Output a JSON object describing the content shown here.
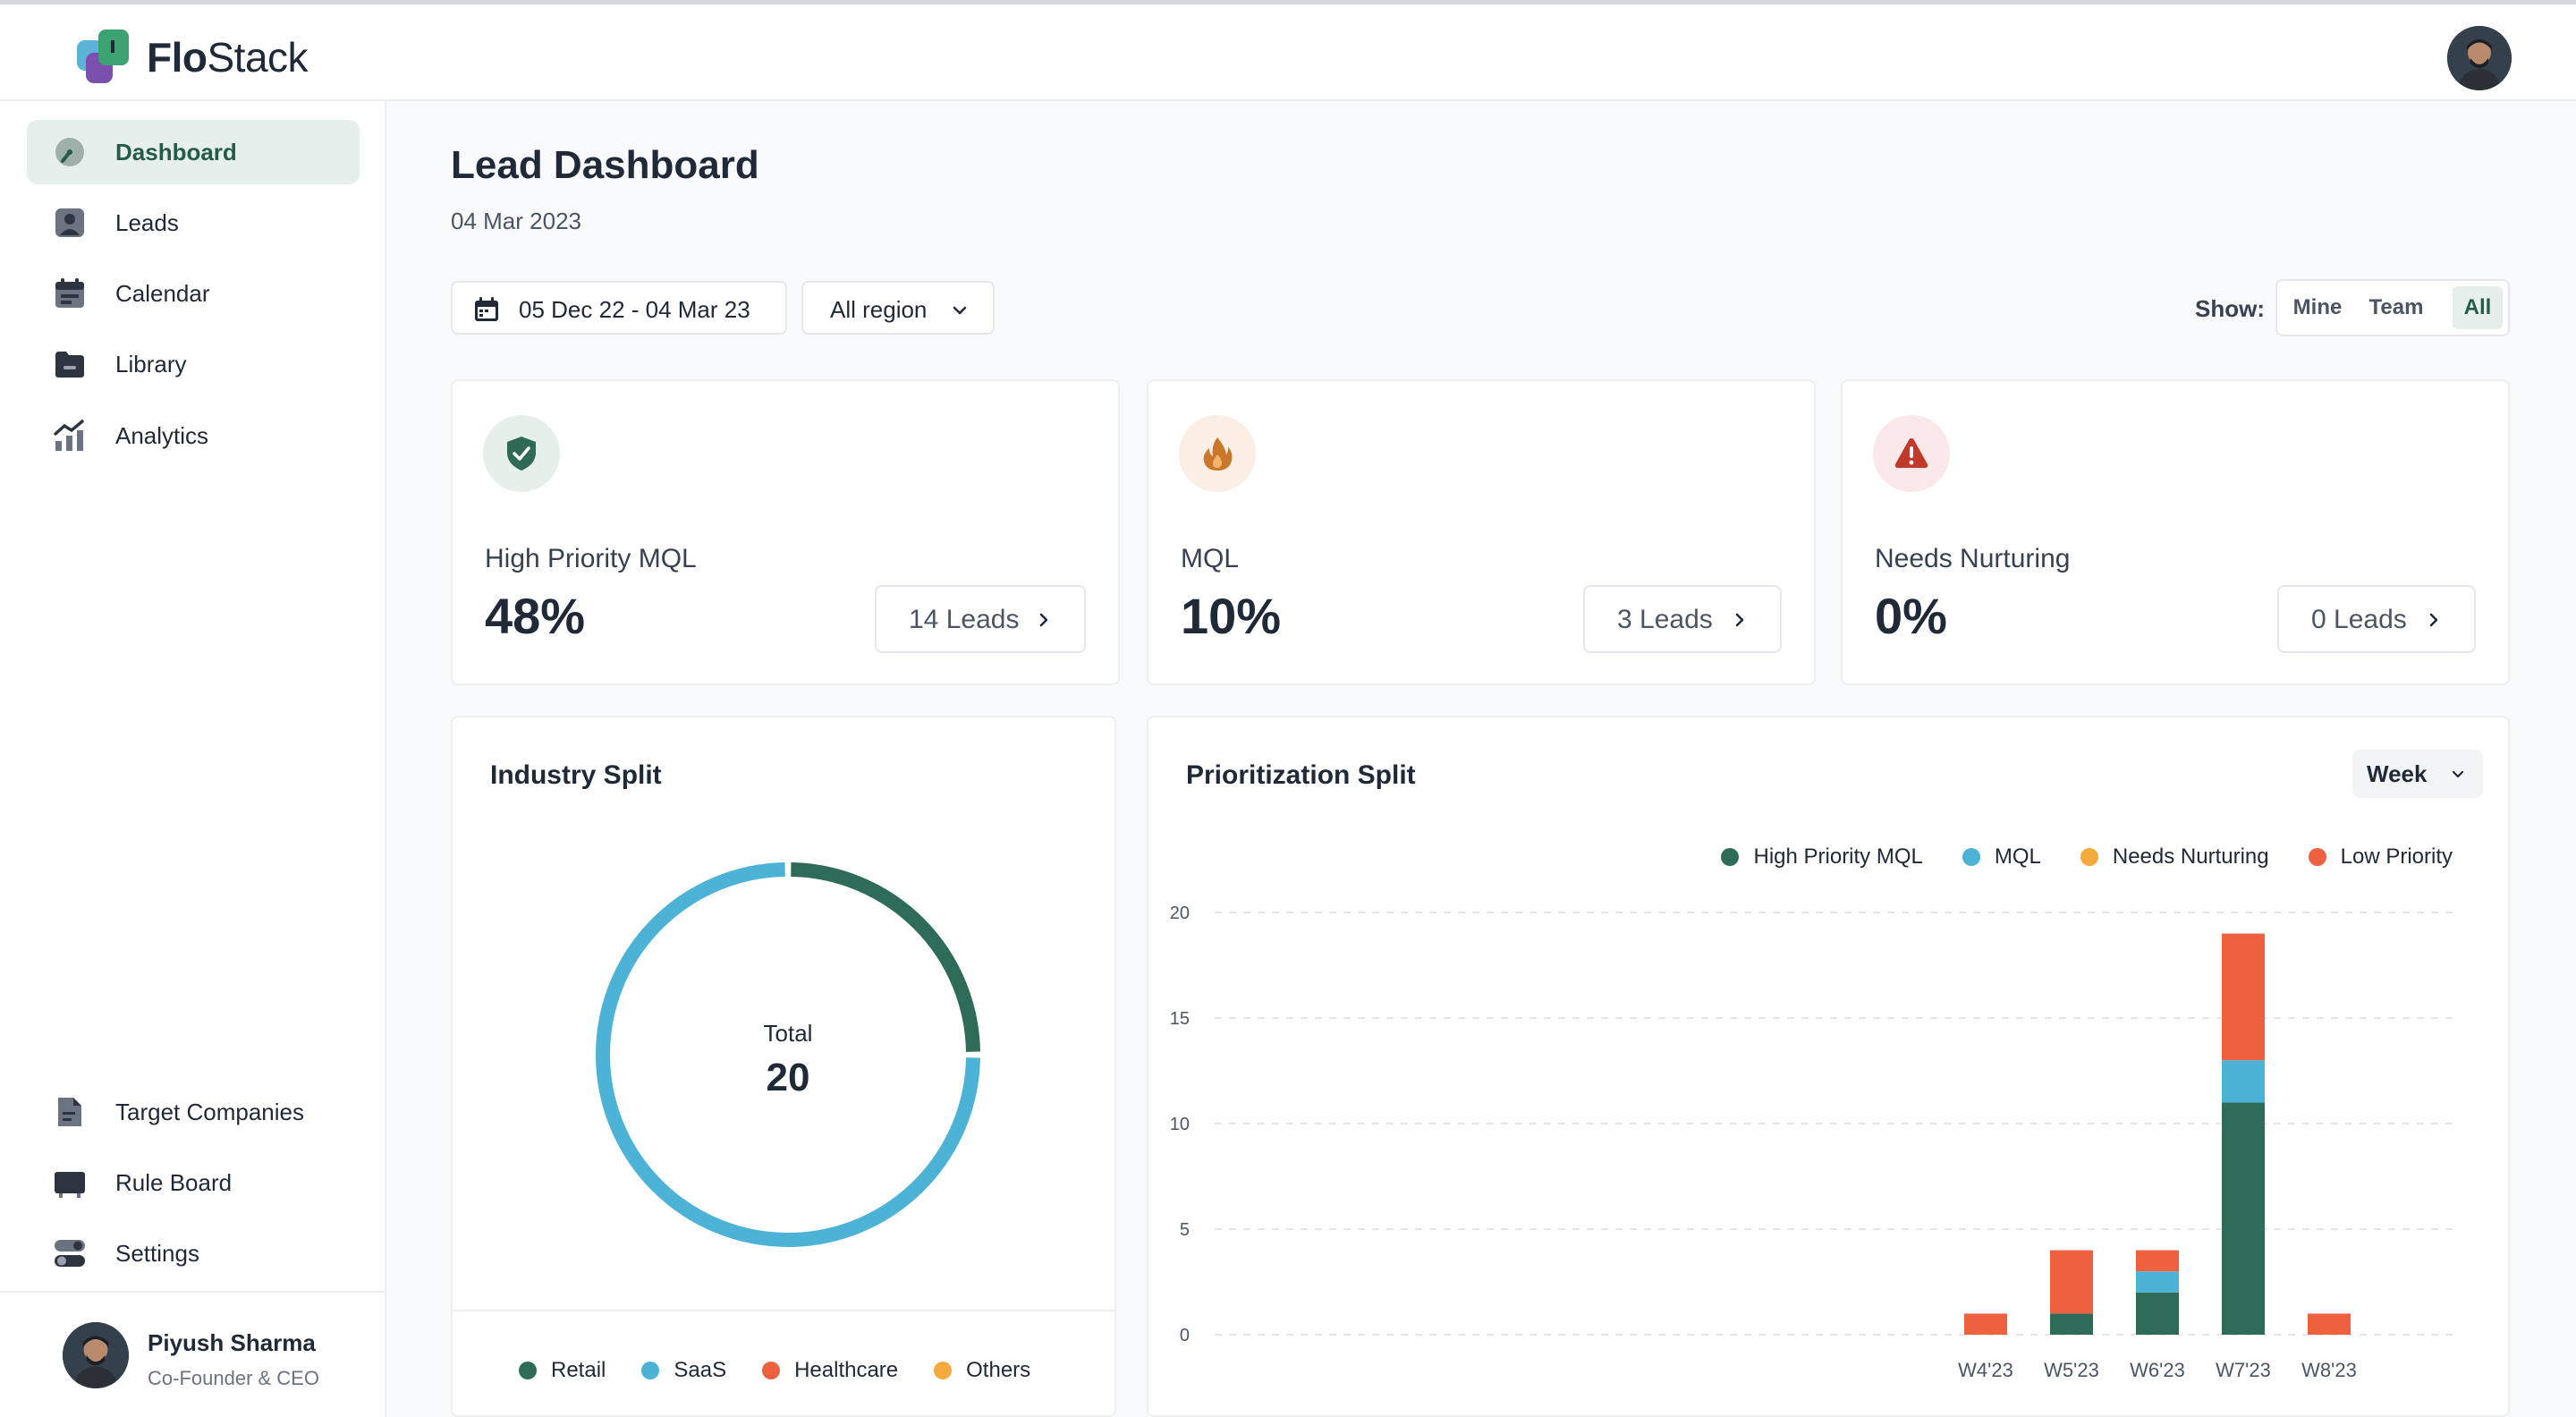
{
  "app": {
    "brand_part1": "Flo",
    "brand_part2": "Stack"
  },
  "sidebar": {
    "items": [
      {
        "label": "Dashboard",
        "icon": "dashboard-gauge-icon",
        "active": true
      },
      {
        "label": "Leads",
        "icon": "user-badge-icon"
      },
      {
        "label": "Calendar",
        "icon": "calendar-icon"
      },
      {
        "label": "Library",
        "icon": "folder-icon"
      },
      {
        "label": "Analytics",
        "icon": "analytics-chart-icon"
      }
    ],
    "bottom_items": [
      {
        "label": "Target Companies",
        "icon": "document-icon"
      },
      {
        "label": "Rule Board",
        "icon": "board-icon"
      },
      {
        "label": "Settings",
        "icon": "toggle-icon"
      }
    ],
    "user": {
      "name": "Piyush Sharma",
      "role": "Co-Founder & CEO"
    }
  },
  "main": {
    "title": "Lead Dashboard",
    "date": "04 Mar 2023",
    "filters": {
      "date_range": "05 Dec 22 - 04 Mar 23",
      "region": "All region"
    },
    "show": {
      "label": "Show:",
      "options": [
        "Mine",
        "Team",
        "All"
      ],
      "selected": "All"
    }
  },
  "kpis": [
    {
      "label": "High Priority MQL",
      "value": "48%",
      "button": "14 Leads",
      "icon": "shield-check-icon",
      "color": "#2f6a56",
      "badge_bg": "#e7efeb"
    },
    {
      "label": "MQL",
      "value": "10%",
      "button": "3 Leads",
      "icon": "fire-icon",
      "color": "#c9772a",
      "badge_bg": "#fbeee4"
    },
    {
      "label": "Needs Nurturing",
      "value": "0%",
      "button": "0 Leads",
      "icon": "warning-triangle-icon",
      "color": "#c0392b",
      "badge_bg": "#fbe9e9"
    }
  ],
  "industry_split": {
    "title": "Industry Split",
    "total_label": "Total",
    "total_value": "20",
    "legend": [
      "Retail",
      "SaaS",
      "Healthcare",
      "Others"
    ]
  },
  "prioritization_split": {
    "title": "Prioritization Split",
    "period": "Week",
    "legend": [
      "High Priority MQL",
      "MQL",
      "Needs Nurturing",
      "Low Priority"
    ]
  },
  "colors": {
    "accent": "#245b4a",
    "high_priority": "#2e6b59",
    "mql": "#4db3d6",
    "needs_nurturing": "#f2ab3c",
    "low_priority": "#ee6140",
    "retail": "#2e6b59",
    "saas": "#4db3d6",
    "healthcare": "#ee6140",
    "others": "#f2ab3c"
  },
  "chart_data": [
    {
      "type": "pie",
      "title": "Industry Split",
      "categories": [
        "Retail",
        "SaaS",
        "Healthcare",
        "Others"
      ],
      "values": [
        5,
        15,
        0,
        0
      ]
    },
    {
      "type": "bar",
      "stacked": true,
      "title": "Prioritization Split",
      "categories": [
        "W4'23",
        "W5'23",
        "W6'23",
        "W7'23",
        "W8'23"
      ],
      "series": [
        {
          "name": "High Priority MQL",
          "values": [
            0,
            1,
            2,
            11,
            0
          ]
        },
        {
          "name": "MQL",
          "values": [
            0,
            0,
            1,
            2,
            0
          ]
        },
        {
          "name": "Needs Nurturing",
          "values": [
            0,
            0,
            0,
            0,
            0
          ]
        },
        {
          "name": "Low Priority",
          "values": [
            1,
            3,
            1,
            6,
            1
          ]
        }
      ],
      "ylim": [
        0,
        20
      ],
      "yticks": [
        0,
        5,
        10,
        15,
        20
      ],
      "grid": true,
      "legend": "top-right"
    }
  ]
}
